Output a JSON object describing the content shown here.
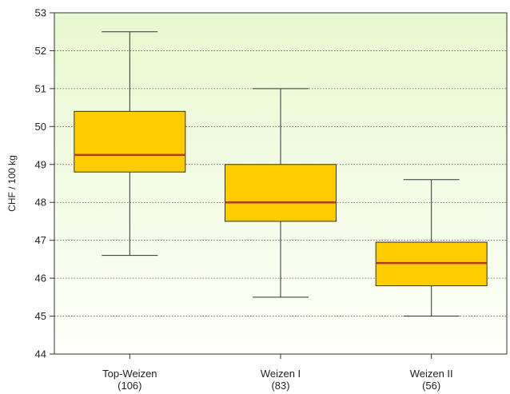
{
  "chart_data": {
    "type": "box",
    "title": "",
    "ylabel": "CHF / 100 kg",
    "ylim": [
      44,
      53
    ],
    "yticks": [
      "44",
      "45",
      "46",
      "47",
      "48",
      "49",
      "50",
      "51",
      "52",
      "53"
    ],
    "grid": "horizontal-dotted",
    "background": "gradient light green to white",
    "colors": {
      "box_fill": "#FFCC00",
      "median": "#B03A1A",
      "outline": "#333333",
      "grid": "#555555"
    },
    "boxes": [
      {
        "category": "Top-Weizen",
        "count": "(106)",
        "whisker_low": 46.6,
        "q1": 48.8,
        "median": 49.25,
        "q3": 50.4,
        "whisker_high": 52.5
      },
      {
        "category": "Weizen I",
        "count": "(83)",
        "whisker_low": 45.5,
        "q1": 47.5,
        "median": 48.0,
        "q3": 49.0,
        "whisker_high": 51.0
      },
      {
        "category": "Weizen II",
        "count": "(56)",
        "whisker_low": 45.0,
        "q1": 45.8,
        "median": 46.4,
        "q3": 46.95,
        "whisker_high": 48.6
      }
    ]
  }
}
